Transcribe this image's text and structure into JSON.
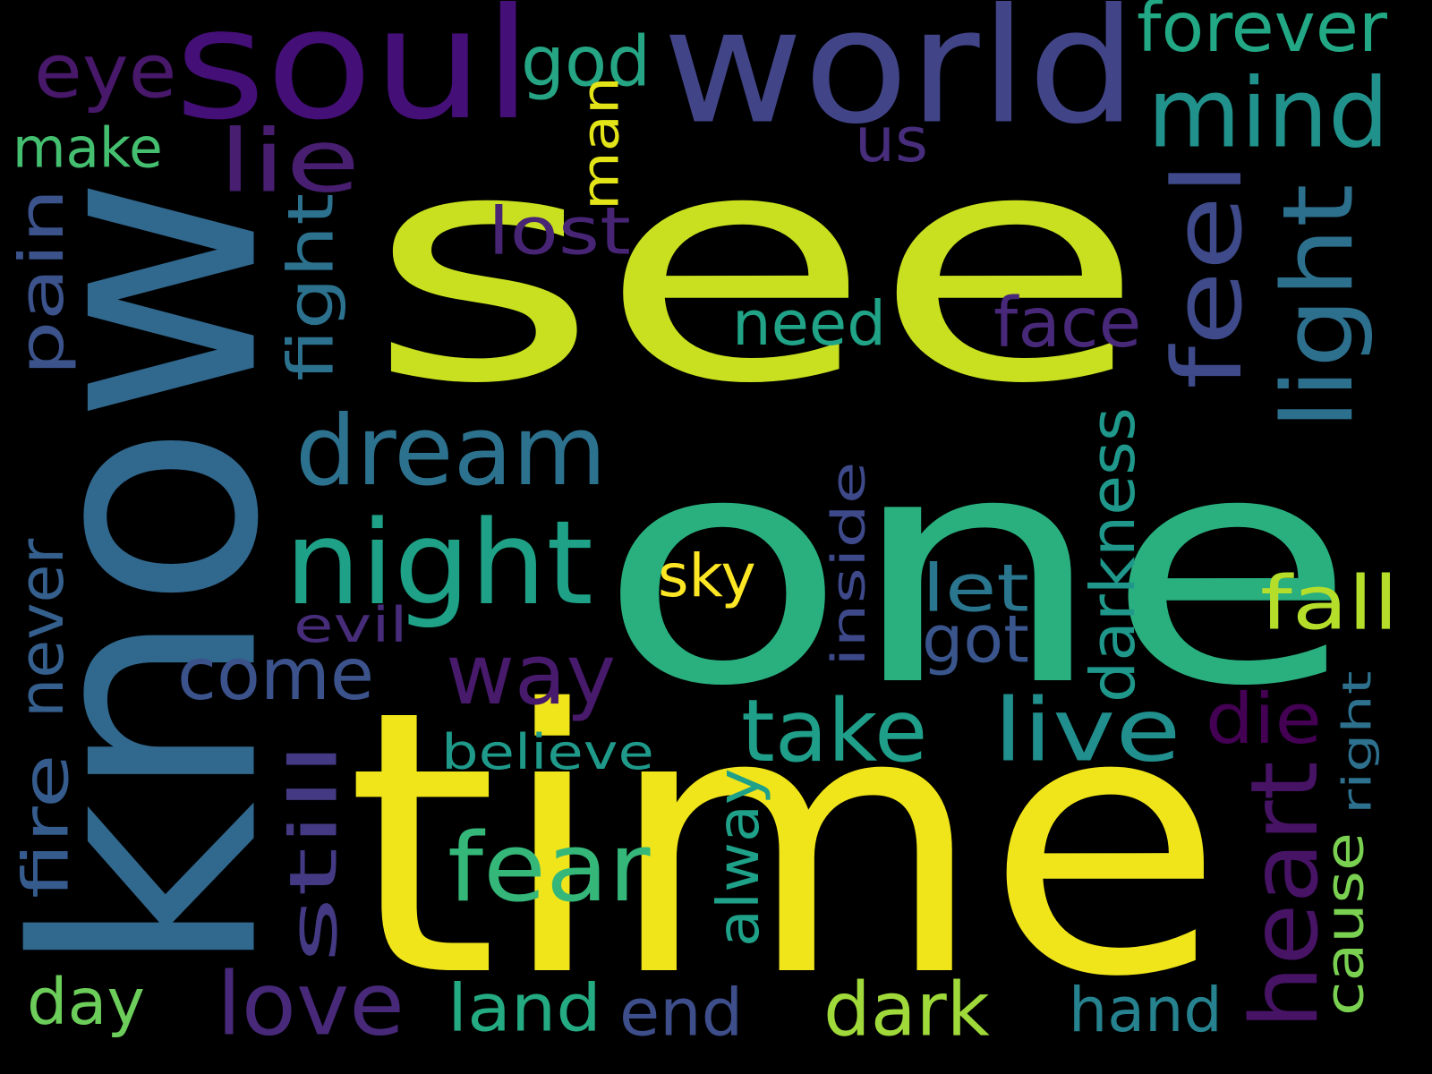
{
  "background": "#000000",
  "words": [
    {
      "id": "see",
      "text": "see",
      "color": "#c8e020"
    },
    {
      "id": "one",
      "text": "one",
      "color": "#2ab07f"
    },
    {
      "id": "know",
      "text": "know",
      "color": "#31688e"
    },
    {
      "id": "time",
      "text": "time",
      "color": "#f0e51b"
    },
    {
      "id": "world",
      "text": "world",
      "color": "#414487"
    },
    {
      "id": "soul",
      "text": "soul",
      "color": "#440f76"
    },
    {
      "id": "mind",
      "text": "mind",
      "color": "#21918c"
    },
    {
      "id": "forever",
      "text": "forever",
      "color": "#22a884"
    },
    {
      "id": "god",
      "text": "god",
      "color": "#25a584"
    },
    {
      "id": "eye",
      "text": "eye",
      "color": "#48186a"
    },
    {
      "id": "make",
      "text": "make",
      "color": "#44bf70"
    },
    {
      "id": "lie",
      "text": "lie",
      "color": "#481f70"
    },
    {
      "id": "us",
      "text": "us",
      "color": "#472d7b"
    },
    {
      "id": "man",
      "text": "man",
      "color": "#e2e418"
    },
    {
      "id": "lost",
      "text": "lost",
      "color": "#482475"
    },
    {
      "id": "pain",
      "text": "pain",
      "color": "#3b528b"
    },
    {
      "id": "fight",
      "text": "fight",
      "color": "#2c728e"
    },
    {
      "id": "feel",
      "text": "feel",
      "color": "#3e4a89"
    },
    {
      "id": "light",
      "text": "light",
      "color": "#2d708e"
    },
    {
      "id": "need",
      "text": "need",
      "color": "#20a386"
    },
    {
      "id": "face",
      "text": "face",
      "color": "#482878"
    },
    {
      "id": "dream",
      "text": "dream",
      "color": "#2c728e"
    },
    {
      "id": "night",
      "text": "night",
      "color": "#1fa187"
    },
    {
      "id": "darkness",
      "text": "darkness",
      "color": "#1f988b"
    },
    {
      "id": "inside",
      "text": "inside",
      "color": "#3e4989"
    },
    {
      "id": "sky",
      "text": "sky",
      "color": "#fde725"
    },
    {
      "id": "let",
      "text": "let",
      "color": "#2a768e"
    },
    {
      "id": "fall",
      "text": "fall",
      "color": "#b5de2b"
    },
    {
      "id": "never",
      "text": "never",
      "color": "#355f8d"
    },
    {
      "id": "evil",
      "text": "evil",
      "color": "#472c7a"
    },
    {
      "id": "got",
      "text": "got",
      "color": "#39558c"
    },
    {
      "id": "come",
      "text": "come",
      "color": "#3b528b"
    },
    {
      "id": "way",
      "text": "way",
      "color": "#481a6c"
    },
    {
      "id": "take",
      "text": "take",
      "color": "#1f9e89"
    },
    {
      "id": "live",
      "text": "live",
      "color": "#218f8d"
    },
    {
      "id": "die",
      "text": "die",
      "color": "#440154"
    },
    {
      "id": "believe",
      "text": "believe",
      "color": "#1f9a8a"
    },
    {
      "id": "right",
      "text": "right",
      "color": "#2d718e"
    },
    {
      "id": "heart",
      "text": "heart",
      "color": "#471365"
    },
    {
      "id": "cause",
      "text": "cause",
      "color": "#7ad151"
    },
    {
      "id": "still",
      "text": "still",
      "color": "#443a83"
    },
    {
      "id": "alway",
      "text": "alway",
      "color": "#1fa088"
    },
    {
      "id": "fear",
      "text": "fear",
      "color": "#35b779"
    },
    {
      "id": "fire",
      "text": "fire",
      "color": "#365c8d"
    },
    {
      "id": "day",
      "text": "day",
      "color": "#6ccd5a"
    },
    {
      "id": "love",
      "text": "love",
      "color": "#482979"
    },
    {
      "id": "land",
      "text": "land",
      "color": "#25ab82"
    },
    {
      "id": "end",
      "text": "end",
      "color": "#3d4e8a"
    },
    {
      "id": "dark",
      "text": "dark",
      "color": "#9fda3a"
    },
    {
      "id": "hand",
      "text": "hand",
      "color": "#26828e"
    }
  ]
}
